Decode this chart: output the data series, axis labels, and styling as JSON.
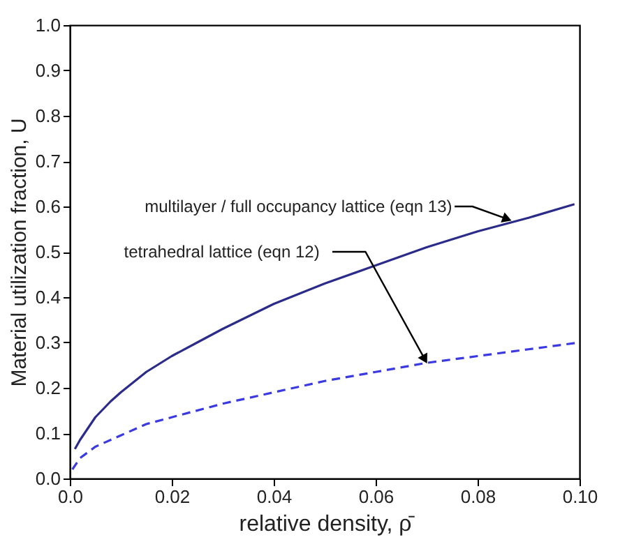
{
  "chart_data": {
    "type": "line",
    "xlabel": "relative density, ρ̄",
    "ylabel": "Material utilization fraction, U",
    "xlim": [
      0,
      0.1
    ],
    "ylim": [
      0,
      1
    ],
    "xticks": [
      {
        "value": 0,
        "label": "0.0"
      },
      0.02,
      0.04,
      0.06,
      0.08,
      {
        "value": 0.1,
        "label": "0.10"
      }
    ],
    "yticks": [
      {
        "value": 0,
        "label": "0.0"
      },
      0.1,
      0.2,
      0.3,
      0.4,
      0.5,
      0.6,
      0.7,
      0.8,
      0.9,
      {
        "value": 1,
        "label": "1.0"
      }
    ],
    "series": [
      {
        "name": "multilayer / full occupancy lattice (eqn 13)",
        "color": "#2b2b8a",
        "line_style": "solid",
        "x": [
          0.001,
          0.002,
          0.005,
          0.008,
          0.01,
          0.015,
          0.02,
          0.025,
          0.03,
          0.04,
          0.05,
          0.06,
          0.07,
          0.08,
          0.09,
          0.099
        ],
        "values": [
          0.065,
          0.085,
          0.135,
          0.17,
          0.19,
          0.235,
          0.27,
          0.3,
          0.33,
          0.385,
          0.43,
          0.47,
          0.51,
          0.545,
          0.575,
          0.605
        ]
      },
      {
        "name": "tetrahedral lattice (eqn 12)",
        "color": "#3a3ae0",
        "line_style": "dashed",
        "x": [
          0.0005,
          0.002,
          0.005,
          0.01,
          0.015,
          0.02,
          0.03,
          0.04,
          0.05,
          0.06,
          0.07,
          0.08,
          0.09,
          0.1
        ],
        "values": [
          0.02,
          0.045,
          0.07,
          0.095,
          0.12,
          0.135,
          0.165,
          0.19,
          0.215,
          0.235,
          0.255,
          0.27,
          0.285,
          0.3
        ]
      }
    ]
  }
}
